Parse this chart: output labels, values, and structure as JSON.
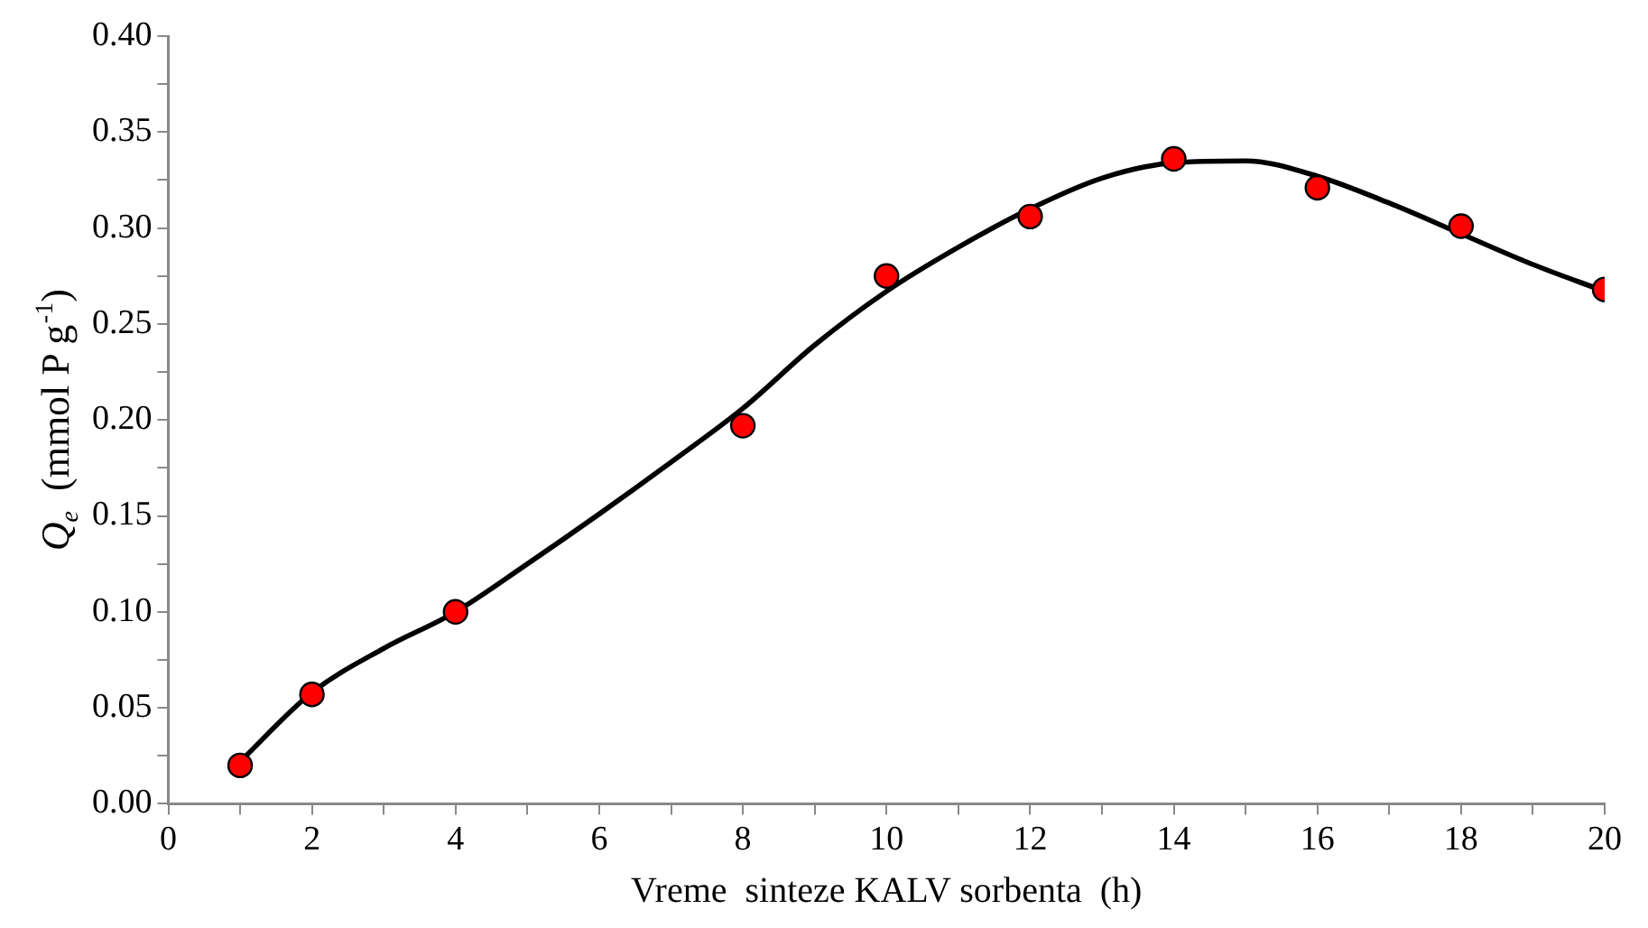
{
  "chart_data": {
    "type": "scatter",
    "xlabel": "Vreme  sinteze KALV sorbenta  (h)",
    "ylabel": "Q$_{e}$  (mmol P g$^{-1}$)",
    "xlim": [
      0,
      20
    ],
    "xticks": [
      0,
      {
        "value": 1,
        "label": null
      },
      2,
      {
        "value": 3,
        "label": null
      },
      4,
      {
        "value": 5,
        "label": null
      },
      6,
      {
        "value": 7,
        "label": null
      },
      8,
      {
        "value": 9,
        "label": null
      },
      10,
      {
        "value": 11,
        "label": null
      },
      12,
      {
        "value": 13,
        "label": null
      },
      14,
      {
        "value": 15,
        "label": null
      },
      16,
      {
        "value": 17,
        "label": null
      },
      18,
      {
        "value": 19,
        "label": null
      },
      20
    ],
    "ylim": [
      0,
      0.4
    ],
    "yticks": [
      {
        "value": 0,
        "label": "0.00"
      },
      {
        "value": 0.025,
        "label": null
      },
      {
        "value": 0.05,
        "label": "0.05"
      },
      {
        "value": 0.075,
        "label": null
      },
      {
        "value": 0.1,
        "label": "0.10"
      },
      {
        "value": 0.125,
        "label": null
      },
      {
        "value": 0.15,
        "label": "0.15"
      },
      {
        "value": 0.175,
        "label": null
      },
      {
        "value": 0.2,
        "label": "0.20"
      },
      {
        "value": 0.225,
        "label": null
      },
      {
        "value": 0.25,
        "label": "0.25"
      },
      {
        "value": 0.275,
        "label": null
      },
      {
        "value": 0.3,
        "label": "0.30"
      },
      {
        "value": 0.325,
        "label": null
      },
      {
        "value": 0.35,
        "label": "0.35"
      },
      {
        "value": 0.375,
        "label": null
      },
      {
        "value": 0.4,
        "label": "0.40"
      }
    ],
    "grid": false,
    "legend": false,
    "marker": "circle",
    "series": [
      {
        "type": "scatter",
        "color": "#ff0000",
        "x": [
          1,
          2,
          4,
          8,
          10,
          12,
          14,
          16,
          18,
          20
        ],
        "values": [
          0.02,
          0.057,
          0.1,
          0.197,
          0.275,
          0.306,
          0.336,
          0.321,
          0.301,
          0.268
        ]
      },
      {
        "type": "line",
        "color": "#000000",
        "marker": "none",
        "line_style": "solid",
        "x": [
          1,
          2,
          3,
          4,
          5,
          6,
          7,
          8,
          9,
          10,
          11,
          12,
          13,
          14,
          15,
          16,
          17,
          18,
          19,
          20
        ],
        "values": [
          0.022,
          0.058,
          0.081,
          0.1,
          0.125,
          0.151,
          0.178,
          0.206,
          0.239,
          0.267,
          0.29,
          0.31,
          0.326,
          0.334,
          0.335,
          0.327,
          0.313,
          0.297,
          0.281,
          0.267
        ]
      }
    ]
  }
}
